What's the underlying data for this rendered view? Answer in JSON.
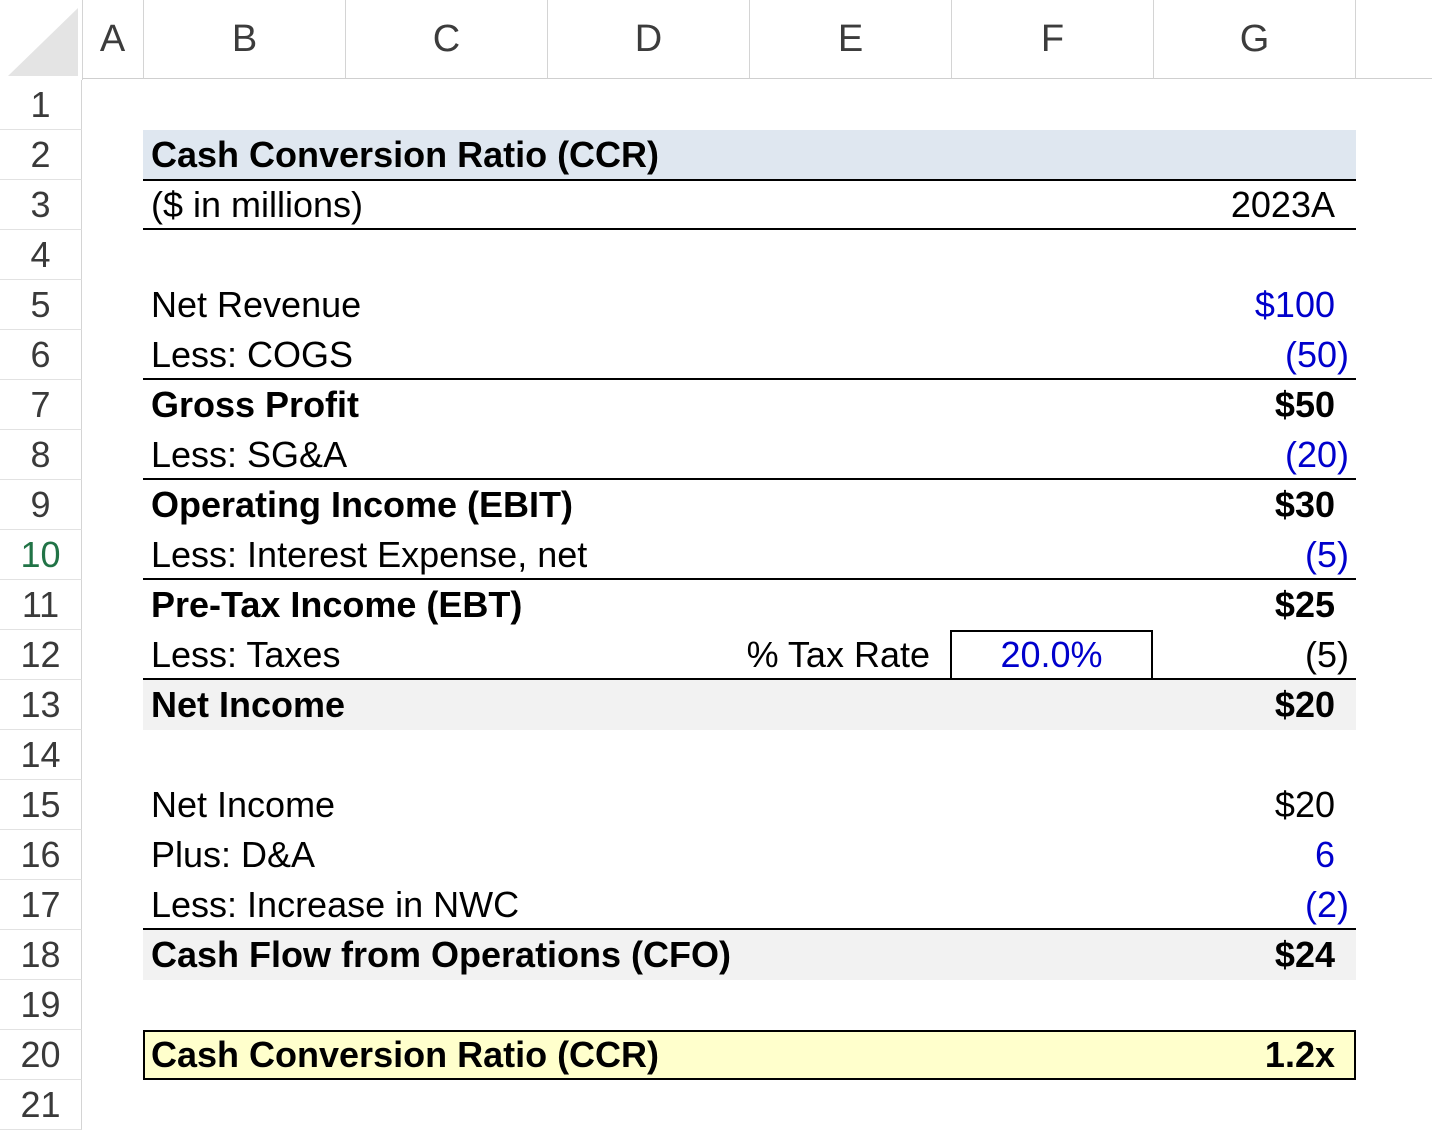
{
  "columns": [
    "A",
    "B",
    "C",
    "D",
    "E",
    "F",
    "G"
  ],
  "rows": [
    "1",
    "2",
    "3",
    "4",
    "5",
    "6",
    "7",
    "8",
    "9",
    "10",
    "11",
    "12",
    "13",
    "14",
    "15",
    "16",
    "17",
    "18",
    "19",
    "20",
    "21"
  ],
  "active_row": "10",
  "sheet": {
    "title": "Cash Conversion Ratio (CCR)",
    "units": "($ in millions)",
    "period": "2023A",
    "income": {
      "net_revenue_label": "Net Revenue",
      "net_revenue": "$100",
      "cogs_label": "Less: COGS",
      "cogs": "(50)",
      "gross_profit_label": "Gross Profit",
      "gross_profit": "$50",
      "sga_label": "Less: SG&A",
      "sga": "(20)",
      "ebit_label": "Operating Income (EBIT)",
      "ebit": "$30",
      "interest_label": "Less: Interest Expense, net",
      "interest": "(5)",
      "ebt_label": "Pre-Tax Income (EBT)",
      "ebt": "$25",
      "taxes_label": "Less: Taxes",
      "tax_rate_label": "% Tax Rate",
      "tax_rate": "20.0%",
      "taxes": "(5)",
      "net_income_label": "Net Income",
      "net_income": "$20"
    },
    "cashflow": {
      "net_income_label": "Net Income",
      "net_income": "$20",
      "da_label": "Plus: D&A",
      "da": "6",
      "nwc_label": "Less: Increase in NWC",
      "nwc": "(2)",
      "cfo_label": "Cash Flow from Operations (CFO)",
      "cfo": "$24"
    },
    "ccr_label": "Cash Conversion Ratio (CCR)",
    "ccr": "1.2x"
  },
  "colors": {
    "input_blue": "#0000cc",
    "header_band": "#dfe7f0",
    "total_band": "#f2f2f2",
    "ccr_fill": "#ffffcc",
    "active_row": "#217346"
  }
}
